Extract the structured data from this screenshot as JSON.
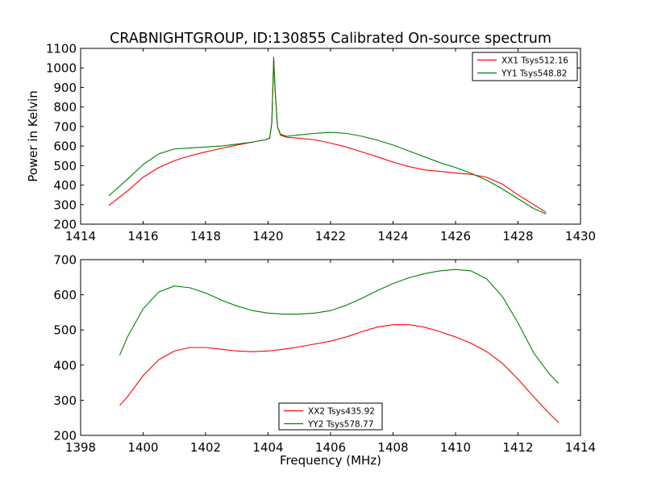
{
  "figure": {
    "title": "CRABNIGHTGROUP, ID:130855 Calibrated On-source spectrum"
  },
  "chart_data": [
    {
      "type": "line",
      "title": "CRABNIGHTGROUP, ID:130855 Calibrated On-source spectrum",
      "xlabel": "",
      "ylabel": "Power in Kelvin",
      "xlim": [
        1414,
        1430
      ],
      "ylim": [
        200,
        1100
      ],
      "xticks": [
        1414,
        1416,
        1418,
        1420,
        1422,
        1424,
        1426,
        1428,
        1430
      ],
      "yticks": [
        200,
        300,
        400,
        500,
        600,
        700,
        800,
        900,
        1000,
        1100
      ],
      "grid": false,
      "legend_position": "top-right",
      "series": [
        {
          "name": "XX1 Tsys512.16",
          "color": "#ff0000",
          "x": [
            1414.9,
            1415.5,
            1416.0,
            1416.5,
            1417.0,
            1417.5,
            1418.0,
            1418.5,
            1419.0,
            1419.5,
            1419.9,
            1420.05,
            1420.12,
            1420.18,
            1420.22,
            1420.3,
            1420.4,
            1420.6,
            1421.0,
            1421.5,
            1422.0,
            1422.5,
            1423.0,
            1423.5,
            1424.0,
            1424.5,
            1425.0,
            1425.5,
            1426.0,
            1426.5,
            1427.0,
            1427.5,
            1428.0,
            1428.5,
            1428.9
          ],
          "y": [
            295,
            370,
            440,
            490,
            525,
            550,
            570,
            588,
            605,
            620,
            632,
            640,
            720,
            1055,
            900,
            700,
            655,
            645,
            640,
            632,
            615,
            595,
            570,
            545,
            518,
            495,
            478,
            470,
            462,
            455,
            440,
            405,
            350,
            300,
            260
          ]
        },
        {
          "name": "YY1 Tsys548.82",
          "color": "#008000",
          "x": [
            1414.9,
            1415.5,
            1416.0,
            1416.5,
            1417.0,
            1417.5,
            1418.0,
            1418.5,
            1419.0,
            1419.5,
            1419.9,
            1420.05,
            1420.12,
            1420.18,
            1420.22,
            1420.3,
            1420.4,
            1420.6,
            1421.0,
            1421.5,
            1422.0,
            1422.5,
            1423.0,
            1423.5,
            1424.0,
            1424.5,
            1425.0,
            1425.5,
            1426.0,
            1426.5,
            1427.0,
            1427.5,
            1428.0,
            1428.5,
            1428.9
          ],
          "y": [
            345,
            430,
            505,
            560,
            585,
            590,
            595,
            600,
            610,
            620,
            632,
            640,
            720,
            1045,
            900,
            700,
            660,
            650,
            657,
            665,
            670,
            665,
            650,
            630,
            605,
            575,
            545,
            515,
            490,
            460,
            425,
            380,
            330,
            280,
            252
          ]
        }
      ]
    },
    {
      "type": "line",
      "title": "",
      "xlabel": "Frequency (MHz)",
      "ylabel": "",
      "xlim": [
        1398,
        1414
      ],
      "ylim": [
        200,
        700
      ],
      "xticks": [
        1398,
        1400,
        1402,
        1404,
        1406,
        1408,
        1410,
        1412,
        1414
      ],
      "yticks": [
        200,
        300,
        400,
        500,
        600,
        700
      ],
      "grid": false,
      "legend_position": "bottom-center",
      "series": [
        {
          "name": "XX2 Tsys435.92",
          "color": "#ff0000",
          "x": [
            1399.25,
            1399.5,
            1400.0,
            1400.5,
            1401.0,
            1401.5,
            1402.0,
            1402.5,
            1403.0,
            1403.5,
            1404.0,
            1404.5,
            1405.0,
            1405.5,
            1406.0,
            1406.5,
            1407.0,
            1407.5,
            1408.0,
            1408.5,
            1409.0,
            1409.5,
            1410.0,
            1410.5,
            1411.0,
            1411.5,
            1412.0,
            1412.5,
            1413.0,
            1413.3
          ],
          "y": [
            285,
            310,
            370,
            415,
            440,
            450,
            450,
            445,
            440,
            438,
            440,
            445,
            452,
            460,
            468,
            480,
            495,
            508,
            515,
            515,
            508,
            495,
            480,
            462,
            438,
            405,
            360,
            310,
            262,
            237
          ]
        },
        {
          "name": "YY2 Tsys578.77",
          "color": "#008000",
          "x": [
            1399.25,
            1399.5,
            1400.0,
            1400.5,
            1401.0,
            1401.5,
            1402.0,
            1402.5,
            1403.0,
            1403.5,
            1404.0,
            1404.5,
            1405.0,
            1405.5,
            1406.0,
            1406.5,
            1407.0,
            1407.5,
            1408.0,
            1408.5,
            1409.0,
            1409.5,
            1410.0,
            1410.5,
            1411.0,
            1411.5,
            1412.0,
            1412.5,
            1413.0,
            1413.3
          ],
          "y": [
            428,
            480,
            560,
            608,
            625,
            620,
            605,
            585,
            568,
            555,
            548,
            545,
            545,
            548,
            555,
            570,
            590,
            612,
            632,
            648,
            660,
            668,
            672,
            668,
            645,
            595,
            520,
            435,
            375,
            348
          ]
        }
      ]
    }
  ]
}
